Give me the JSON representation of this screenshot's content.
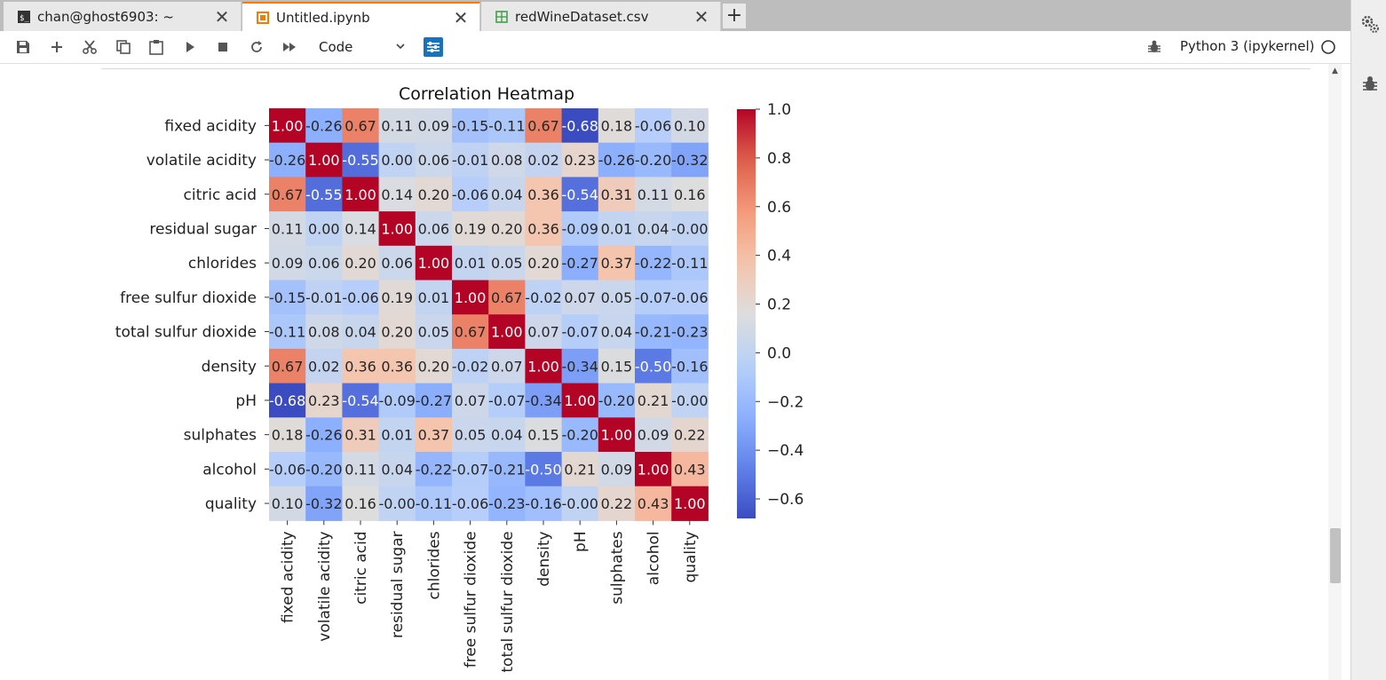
{
  "tabs": [
    {
      "label": "chan@ghost6903: ~",
      "icon": "terminal-icon",
      "active": false
    },
    {
      "label": "Untitled.ipynb",
      "icon": "notebook-icon",
      "active": true
    },
    {
      "label": "redWineDataset.csv",
      "icon": "spreadsheet-icon",
      "active": false
    }
  ],
  "toolbar": {
    "cell_type": "Code",
    "kernel": "Python 3 (ipykernel)"
  },
  "colors": {
    "accent": "#f57c00",
    "toolbar_toggle": "#1a73b8"
  },
  "chart_data": {
    "type": "heatmap",
    "title": "Correlation Heatmap",
    "colormap": "coolwarm",
    "labels": [
      "fixed acidity",
      "volatile acidity",
      "citric acid",
      "residual sugar",
      "chlorides",
      "free sulfur dioxide",
      "total sulfur dioxide",
      "density",
      "pH",
      "sulphates",
      "alcohol",
      "quality"
    ],
    "matrix": [
      [
        1.0,
        -0.26,
        0.67,
        0.11,
        0.09,
        -0.15,
        -0.11,
        0.67,
        -0.68,
        0.18,
        -0.06,
        0.1
      ],
      [
        -0.26,
        1.0,
        -0.55,
        0.0,
        0.06,
        -0.01,
        0.08,
        0.02,
        0.23,
        -0.26,
        -0.2,
        -0.32
      ],
      [
        0.67,
        -0.55,
        1.0,
        0.14,
        0.2,
        -0.06,
        0.04,
        0.36,
        -0.54,
        0.31,
        0.11,
        0.16
      ],
      [
        0.11,
        0.0,
        0.14,
        1.0,
        0.06,
        0.19,
        0.2,
        0.36,
        -0.09,
        0.01,
        0.04,
        -0.0
      ],
      [
        0.09,
        0.06,
        0.2,
        0.06,
        1.0,
        0.01,
        0.05,
        0.2,
        -0.27,
        0.37,
        -0.22,
        -0.11
      ],
      [
        -0.15,
        -0.01,
        -0.06,
        0.19,
        0.01,
        1.0,
        0.67,
        -0.02,
        0.07,
        0.05,
        -0.07,
        -0.06
      ],
      [
        -0.11,
        0.08,
        0.04,
        0.2,
        0.05,
        0.67,
        1.0,
        0.07,
        -0.07,
        0.04,
        -0.21,
        -0.23
      ],
      [
        0.67,
        0.02,
        0.36,
        0.36,
        0.2,
        -0.02,
        0.07,
        1.0,
        -0.34,
        0.15,
        -0.5,
        -0.16
      ],
      [
        -0.68,
        0.23,
        -0.54,
        -0.09,
        -0.27,
        0.07,
        -0.07,
        -0.34,
        1.0,
        -0.2,
        0.21,
        -0.0
      ],
      [
        0.18,
        -0.26,
        0.31,
        0.01,
        0.37,
        0.05,
        0.04,
        0.15,
        -0.2,
        1.0,
        0.09,
        0.22
      ],
      [
        -0.06,
        -0.2,
        0.11,
        0.04,
        -0.22,
        -0.07,
        -0.21,
        -0.5,
        0.21,
        0.09,
        1.0,
        0.43
      ],
      [
        0.1,
        -0.32,
        0.16,
        -0.0,
        -0.11,
        -0.06,
        -0.23,
        -0.16,
        -0.0,
        0.22,
        0.43,
        1.0
      ]
    ],
    "vmin": -0.68,
    "vmax": 1.0,
    "colorbar_ticks": [
      "1.0",
      "0.8",
      "0.6",
      "0.4",
      "0.2",
      "0.0",
      "−0.2",
      "−0.4",
      "−0.6"
    ]
  }
}
